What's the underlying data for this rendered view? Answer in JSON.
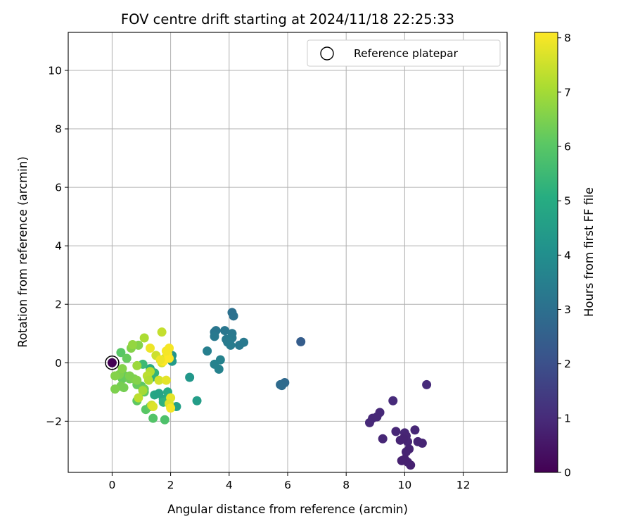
{
  "chart_data": {
    "type": "scatter",
    "title": "FOV centre drift starting at 2024/11/18 22:25:33",
    "xlabel": "Angular distance from reference (arcmin)",
    "ylabel": "Rotation from reference (arcmin)",
    "xlim": [
      -1.5,
      13.5
    ],
    "ylim": [
      -3.75,
      11.3
    ],
    "xticks": [
      0,
      2,
      4,
      6,
      8,
      10,
      12
    ],
    "xtick_labels": [
      "0",
      "2",
      "4",
      "6",
      "8",
      "10",
      "12"
    ],
    "yticks": [
      -2,
      0,
      2,
      4,
      6,
      8,
      10
    ],
    "ytick_labels": [
      "−2",
      "0",
      "2",
      "4",
      "6",
      "8",
      "10"
    ],
    "grid": true,
    "legend": {
      "position": "top-right",
      "entries": [
        "Reference platepar"
      ]
    },
    "colorbar": {
      "label": "Hours from first FF file",
      "colormap": "viridis",
      "range": [
        0,
        8.1
      ],
      "ticks": [
        0,
        1,
        2,
        3,
        4,
        5,
        6,
        7,
        8
      ],
      "tick_labels": [
        "0",
        "1",
        "2",
        "3",
        "4",
        "5",
        "6",
        "7",
        "8"
      ]
    },
    "reference_point": {
      "x": 0,
      "y": 0,
      "label": "Reference platepar"
    },
    "series": [
      {
        "points": [
          [
            0.0,
            0.0,
            0.0
          ],
          [
            10.75,
            -0.75,
            1.0
          ],
          [
            9.6,
            -1.3,
            1.0
          ],
          [
            9.15,
            -1.7,
            0.95
          ],
          [
            9.05,
            -1.85,
            0.95
          ],
          [
            8.9,
            -1.9,
            0.95
          ],
          [
            8.8,
            -2.05,
            0.95
          ],
          [
            9.25,
            -2.6,
            0.9
          ],
          [
            9.7,
            -2.35,
            0.9
          ],
          [
            10.35,
            -2.3,
            0.9
          ],
          [
            10.0,
            -2.4,
            0.9
          ],
          [
            10.05,
            -2.5,
            0.85
          ],
          [
            9.85,
            -2.65,
            0.85
          ],
          [
            10.1,
            -2.7,
            0.85
          ],
          [
            10.45,
            -2.7,
            0.85
          ],
          [
            10.6,
            -2.75,
            0.85
          ],
          [
            9.95,
            -2.6,
            0.8
          ],
          [
            10.15,
            -2.95,
            0.8
          ],
          [
            10.05,
            -3.05,
            0.8
          ],
          [
            10.0,
            -3.3,
            0.75
          ],
          [
            10.1,
            -3.4,
            0.75
          ],
          [
            10.2,
            -3.5,
            0.75
          ],
          [
            9.9,
            -3.35,
            0.75
          ],
          [
            6.45,
            0.72,
            2.4
          ],
          [
            5.9,
            -0.68,
            2.8
          ],
          [
            5.75,
            -0.75,
            2.85
          ],
          [
            5.8,
            -0.78,
            2.85
          ],
          [
            4.1,
            1.72,
            3.0
          ],
          [
            4.15,
            1.6,
            3.05
          ],
          [
            3.5,
            1.05,
            3.2
          ],
          [
            3.55,
            1.1,
            3.2
          ],
          [
            3.5,
            0.9,
            3.3
          ],
          [
            3.85,
            1.1,
            3.2
          ],
          [
            4.1,
            1.0,
            3.25
          ],
          [
            4.1,
            0.85,
            3.3
          ],
          [
            3.9,
            0.8,
            3.3
          ],
          [
            4.0,
            0.75,
            3.35
          ],
          [
            3.95,
            0.7,
            3.35
          ],
          [
            4.05,
            0.6,
            3.4
          ],
          [
            4.35,
            0.6,
            3.3
          ],
          [
            4.5,
            0.7,
            3.3
          ],
          [
            3.25,
            0.4,
            3.5
          ],
          [
            3.7,
            0.1,
            3.6
          ],
          [
            3.5,
            -0.05,
            3.6
          ],
          [
            3.65,
            -0.22,
            3.6
          ],
          [
            2.65,
            -0.5,
            4.3
          ],
          [
            2.9,
            -1.3,
            4.5
          ],
          [
            2.2,
            -1.5,
            4.6
          ],
          [
            2.05,
            0.25,
            4.2
          ],
          [
            2.05,
            0.05,
            4.4
          ],
          [
            1.75,
            -1.25,
            4.9
          ],
          [
            1.45,
            -1.1,
            4.8
          ],
          [
            1.6,
            -1.05,
            4.7
          ],
          [
            1.9,
            -1.0,
            5.0
          ],
          [
            1.75,
            -1.35,
            5.2
          ],
          [
            1.9,
            -1.3,
            5.3
          ],
          [
            1.3,
            -0.2,
            5.0
          ],
          [
            1.35,
            -0.5,
            5.1
          ],
          [
            1.45,
            -0.35,
            5.3
          ],
          [
            1.05,
            -0.05,
            5.5
          ],
          [
            1.8,
            -1.95,
            5.8
          ],
          [
            1.4,
            -1.9,
            5.9
          ],
          [
            1.15,
            -1.6,
            6.0
          ],
          [
            1.3,
            -1.5,
            6.1
          ],
          [
            0.85,
            -1.3,
            6.1
          ],
          [
            1.0,
            -0.8,
            6.0
          ],
          [
            0.85,
            -0.75,
            6.2
          ],
          [
            1.1,
            -0.9,
            6.3
          ],
          [
            1.1,
            -1.0,
            6.1
          ],
          [
            0.45,
            -0.45,
            6.3
          ],
          [
            0.35,
            -0.55,
            6.2
          ],
          [
            0.6,
            -0.55,
            6.3
          ],
          [
            0.3,
            -0.8,
            6.4
          ],
          [
            0.4,
            -0.85,
            6.4
          ],
          [
            0.1,
            -0.9,
            6.5
          ],
          [
            0.25,
            -0.4,
            6.5
          ],
          [
            0.35,
            -0.2,
            6.6
          ],
          [
            0.1,
            -0.45,
            6.6
          ],
          [
            0.6,
            -0.45,
            6.5
          ],
          [
            0.75,
            -0.55,
            6.5
          ],
          [
            0.85,
            -0.6,
            6.6
          ],
          [
            0.3,
            0.35,
            6.0
          ],
          [
            0.5,
            0.15,
            6.2
          ],
          [
            0.9,
            0.6,
            6.6
          ],
          [
            0.65,
            0.5,
            6.6
          ],
          [
            0.7,
            0.62,
            6.8
          ],
          [
            0.85,
            -0.1,
            6.9
          ],
          [
            1.1,
            0.85,
            7.1
          ],
          [
            1.3,
            -0.3,
            7.2
          ],
          [
            1.2,
            -0.45,
            7.3
          ],
          [
            1.25,
            -0.6,
            7.2
          ],
          [
            1.05,
            -0.95,
            7.0
          ],
          [
            0.9,
            -1.2,
            7.3
          ],
          [
            1.7,
            1.05,
            7.4
          ],
          [
            1.5,
            0.25,
            7.5
          ],
          [
            1.8,
            0.15,
            7.6
          ],
          [
            1.7,
            0.0,
            7.6
          ],
          [
            1.6,
            -0.6,
            7.6
          ],
          [
            1.35,
            -1.45,
            7.5
          ],
          [
            1.4,
            -1.5,
            7.7
          ],
          [
            1.3,
            0.5,
            7.9
          ],
          [
            1.7,
            0.05,
            7.9
          ],
          [
            1.85,
            -0.6,
            7.8
          ],
          [
            1.95,
            0.5,
            8.0
          ],
          [
            1.9,
            0.3,
            8.05
          ],
          [
            1.95,
            0.15,
            8.1
          ],
          [
            2.0,
            -1.2,
            7.8
          ],
          [
            1.95,
            -1.4,
            7.7
          ],
          [
            2.0,
            -1.55,
            8.0
          ],
          [
            1.75,
            0.05,
            8.1
          ],
          [
            1.85,
            0.4,
            8.0
          ],
          [
            1.65,
            0.1,
            7.9
          ]
        ]
      }
    ]
  }
}
